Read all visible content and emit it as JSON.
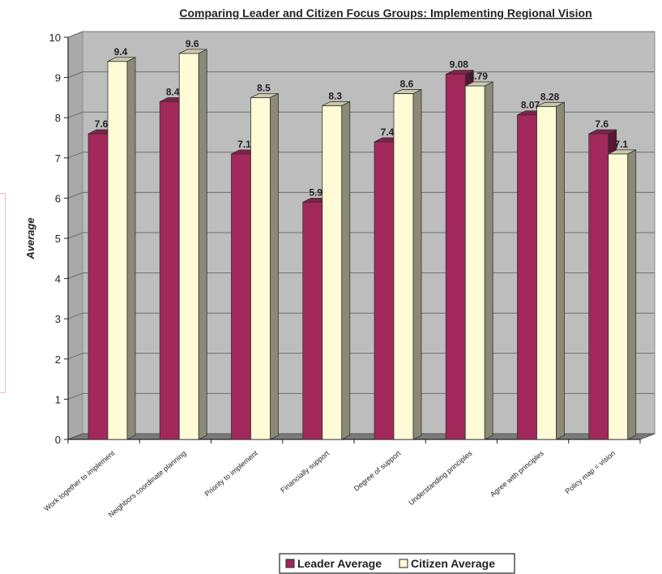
{
  "chart_data": {
    "type": "bar",
    "title": "Comparing Leader and Citizen Focus Groups: Implementing Regional Vision",
    "xlabel": "",
    "ylabel": "Average",
    "ylim": [
      0,
      10
    ],
    "yticks": [
      "0",
      "1",
      "2",
      "3",
      "4",
      "5",
      "6",
      "7",
      "8",
      "9",
      "10"
    ],
    "grid": true,
    "legend_position": "bottom",
    "categories": [
      "Work together to implement",
      "Neighbors coordinate planning",
      "Priority to implement",
      "Financially support",
      "Degree of support",
      "Understanding principles",
      "Agree with principles",
      "Policy map = vision"
    ],
    "series": [
      {
        "name": "Leader Average",
        "color": "#a3285b",
        "values": [
          7.6,
          8.4,
          7.1,
          5.9,
          7.4,
          9.08,
          8.07,
          7.6
        ],
        "labels": [
          "7.6",
          "8.4",
          "7.1",
          "5.9",
          "7.4",
          "9.08",
          "8.07",
          "7.6"
        ]
      },
      {
        "name": "Citizen Average",
        "color": "#fffbd6",
        "values": [
          9.4,
          9.6,
          8.5,
          8.3,
          8.6,
          8.79,
          8.28,
          7.1
        ],
        "labels": [
          "9.4",
          "9.6",
          "8.5",
          "8.3",
          "8.6",
          "8.79",
          "8.28",
          "7.1"
        ]
      }
    ]
  }
}
